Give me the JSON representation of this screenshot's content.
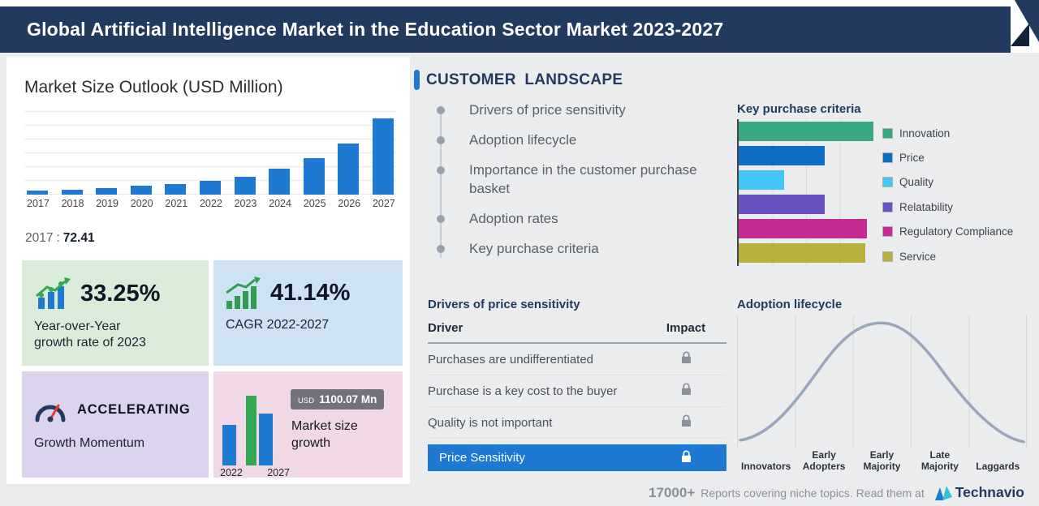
{
  "header": {
    "title": "Global Artificial Intelligence Market in the Education Sector Market 2023-2027"
  },
  "market_outlook": {
    "title": "Market Size Outlook (USD Million)",
    "baseline_year": "2017",
    "baseline_separator": ":",
    "baseline_value": "72.41"
  },
  "stats": {
    "yoy": {
      "value": "33.25%",
      "label_line1": "Year-over-Year",
      "label_line2": "growth rate of 2023"
    },
    "cagr": {
      "value": "41.14%",
      "label": "CAGR 2022-2027"
    },
    "momentum": {
      "value": "ACCELERATING",
      "label": "Growth Momentum"
    },
    "size_growth": {
      "currency": "USD",
      "amount": "1100.07 Mn",
      "label_line1": "Market size",
      "label_line2": "growth",
      "year_start": "2022",
      "year_end": "2027"
    }
  },
  "customer_landscape": {
    "title": "CUSTOMER LANDSCAPE",
    "items": [
      "Drivers of price sensitivity",
      "Adoption lifecycle",
      "Importance in the customer purchase basket",
      "Adoption rates",
      "Key purchase criteria"
    ]
  },
  "price_sensitivity": {
    "title": "Drivers of price sensitivity",
    "columns": {
      "driver": "Driver",
      "impact": "Impact"
    },
    "rows": [
      "Purchases are undifferentiated",
      "Purchase is a key cost to the buyer",
      "Quality is not important"
    ],
    "highlight_label": "Price Sensitivity"
  },
  "footer": {
    "count": "17000+",
    "text": "Reports covering niche topics. Read them at",
    "brand": "Technavio"
  },
  "colors": {
    "header_bg": "#223a5e",
    "accent_blue": "#1d79d2",
    "card_green": "#d9ecd9",
    "card_blue": "#cfe2f4",
    "card_purple": "#dcd4ec",
    "card_pink": "#f0d8e6",
    "highlight_row": "#1d79d2",
    "growth_green": "#34a853"
  },
  "chart_data": [
    {
      "id": "market_size_outlook",
      "type": "bar",
      "title": "Market Size Outlook (USD Million)",
      "categories": [
        "2017",
        "2018",
        "2019",
        "2020",
        "2021",
        "2022",
        "2023",
        "2024",
        "2025",
        "2026",
        "2027"
      ],
      "values": [
        72.41,
        92,
        117,
        150,
        190,
        239.1,
        318.6,
        449.6,
        634.6,
        895.7,
        1339.2
      ],
      "ylabel": "USD Million",
      "ylim": [
        0,
        1400
      ],
      "grid": true,
      "bar_color": "#1d79d2",
      "note": "Only the 2017 value (72.41) is labeled on screen; later values estimated from bar heights"
    },
    {
      "id": "key_purchase_criteria",
      "type": "bar",
      "orientation": "horizontal",
      "title": "Key purchase criteria",
      "categories": [
        "Innovation",
        "Price",
        "Quality",
        "Relatability",
        "Regulatory Compliance",
        "Service"
      ],
      "values": [
        100,
        64,
        34,
        64,
        95,
        94
      ],
      "value_unit": "relative bar length, % of longest (axis unlabeled)",
      "colors": [
        "#3aa981",
        "#0e6dc2",
        "#45c5f5",
        "#6a52c0",
        "#c52b90",
        "#b8b13d"
      ],
      "legend_position": "right",
      "grid": true
    },
    {
      "id": "adoption_lifecycle",
      "type": "line",
      "title": "Adoption lifecycle",
      "curve": "bell",
      "categories": [
        "Innovators",
        "Early Adopters",
        "Early Majority",
        "Late Majority",
        "Laggards"
      ],
      "line_color": "#9aa6ba",
      "grid": true
    },
    {
      "id": "market_size_growth",
      "type": "bar",
      "title": "Market size growth",
      "categories": [
        "2022",
        "2027"
      ],
      "badge": "USD 1100.07 Mn",
      "note": "Growth 2022 to 2027 shown as USD 1100.07 Mn"
    }
  ]
}
